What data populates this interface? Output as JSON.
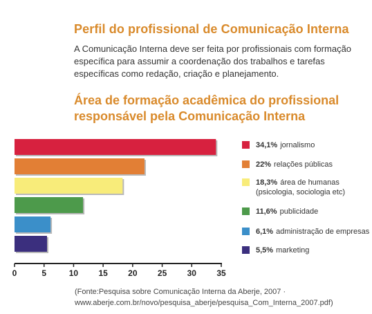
{
  "header": {
    "title": "Perfil do profissional de Comunicação Interna",
    "intro": "A Comunicação Interna deve ser feita por profissionais com formação específica para assumir a coordenação dos trabalhos e tarefas específicas como redação, criação e planejamento."
  },
  "chart_data": {
    "type": "bar",
    "orientation": "horizontal",
    "title": "Área de formação acadêmica do profissional responsável pela Comunicação Interna",
    "categories": [
      "jornalismo",
      "relações públicas",
      "área de humanas",
      "publicidade",
      "administração de empresas",
      "marketing"
    ],
    "values": [
      34.1,
      22,
      18.3,
      11.6,
      6.1,
      5.5
    ],
    "value_labels": [
      "34,1%",
      "22%",
      "18,3%",
      "11,6%",
      "6,1%",
      "5,5%"
    ],
    "legend_sublabels": [
      "",
      "",
      "(psicologia, sociologia etc)",
      "",
      "",
      ""
    ],
    "colors": [
      "#d7213f",
      "#e27f35",
      "#f8ec7a",
      "#4d9a4b",
      "#3b8fc9",
      "#3b2f7e"
    ],
    "xlim": [
      0,
      35
    ],
    "xticks": [
      "0",
      "5",
      "10",
      "15",
      "20",
      "25",
      "30",
      "35"
    ],
    "legend_position": "right",
    "grid": false
  },
  "source": "(Fonte:Pesquisa sobre Comunicação Interna da Aberje, 2007 · www.aberje.com.br/novo/pesquisa_aberje/pesquisa_Com_Interna_2007.pdf)"
}
